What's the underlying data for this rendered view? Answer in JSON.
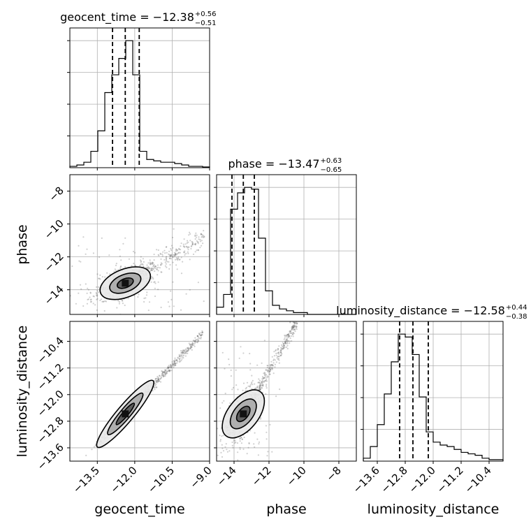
{
  "figure": {
    "type": "corner-plot",
    "parameters": [
      "geocent_time",
      "phase",
      "luminosity_distance"
    ]
  },
  "chart_data": [
    {
      "type": "histogram",
      "panel": "geocent_time-marginal",
      "title": {
        "main": "geocent_time = −12.38",
        "sup": "+0.56",
        "sub": "−0.51"
      },
      "xlim": [
        -14.6,
        -9.0
      ],
      "quantiles": [
        -12.89,
        -12.38,
        -11.82
      ],
      "bins": [
        -14.6,
        -14.32,
        -14.04,
        -13.76,
        -13.48,
        -13.2,
        -12.92,
        -12.64,
        -12.36,
        -12.08,
        -11.8,
        -11.52,
        -11.24,
        -10.96,
        -10.68,
        -10.4,
        -10.12,
        -9.84,
        -9.56,
        -9.28,
        -9.0
      ],
      "counts": [
        1,
        2,
        4,
        12,
        27,
        55,
        68,
        80,
        93,
        68,
        12,
        6,
        5,
        4,
        4,
        3,
        2,
        1,
        1,
        0.5
      ]
    },
    {
      "type": "histogram",
      "panel": "phase-marginal",
      "title": {
        "main": "phase = −13.47",
        "sup": "+0.63",
        "sub": "−0.65"
      },
      "xlim": [
        -15.0,
        -7.0
      ],
      "quantiles": [
        -14.12,
        -13.47,
        -12.84
      ],
      "bins": [
        -15.0,
        -14.6,
        -14.2,
        -13.8,
        -13.4,
        -13.0,
        -12.6,
        -12.2,
        -11.8,
        -11.4,
        -11.0,
        -10.6,
        -10.2,
        -9.8,
        -9.4,
        -9.0,
        -8.6,
        -8.2,
        -7.8,
        -7.4,
        -7.0
      ],
      "counts": [
        4,
        11,
        58,
        67,
        70,
        69,
        42,
        13,
        5,
        3,
        2,
        1,
        1,
        0,
        0,
        0,
        0,
        0,
        0,
        0
      ]
    },
    {
      "type": "histogram",
      "panel": "luminosity_distance-marginal",
      "title": {
        "main": "luminosity_distance = −12.58",
        "sup": "+0.44",
        "sub": "−0.38"
      },
      "xlim": [
        -14.0,
        -10.0
      ],
      "quantiles": [
        -12.96,
        -12.58,
        -12.14
      ],
      "bins": [
        -14.0,
        -13.8,
        -13.6,
        -13.4,
        -13.2,
        -13.0,
        -12.8,
        -12.6,
        -12.4,
        -12.2,
        -12.0,
        -11.8,
        -11.6,
        -11.4,
        -11.2,
        -11.0,
        -10.8,
        -10.6,
        -10.4,
        -10.2,
        -10.0
      ],
      "counts": [
        2,
        10,
        25,
        46,
        68,
        87,
        85,
        73,
        44,
        20,
        13,
        11,
        10,
        8,
        6,
        5,
        4,
        2,
        1,
        1
      ]
    },
    {
      "type": "scatter",
      "panel": "phase-vs-geocent_time",
      "x": "geocent_time",
      "y": "phase",
      "xlim": [
        -14.6,
        -9.0
      ],
      "ylim": [
        -15.5,
        -7.0
      ],
      "contour_center": [
        -12.38,
        -13.6
      ]
    },
    {
      "type": "scatter",
      "panel": "luminosity_distance-vs-geocent_time",
      "x": "geocent_time",
      "y": "luminosity_distance",
      "xlim": [
        -14.6,
        -9.0
      ],
      "ylim": [
        -14.0,
        -9.8
      ],
      "contour_center": [
        -12.38,
        -12.58
      ]
    },
    {
      "type": "scatter",
      "panel": "luminosity_distance-vs-phase",
      "x": "phase",
      "y": "luminosity_distance",
      "xlim": [
        -15.0,
        -7.0
      ],
      "ylim": [
        -14.0,
        -9.8
      ],
      "contour_center": [
        -13.47,
        -12.58
      ]
    }
  ],
  "axes": {
    "geocent_time": {
      "label": "geocent_time",
      "ticks": [
        -13.5,
        -12.0,
        -10.5,
        -9.0
      ],
      "tick_labels": [
        "−13.5",
        "−12.0",
        "−10.5",
        "−9.0"
      ]
    },
    "phase": {
      "label": "phase",
      "ticks": [
        -14,
        -12,
        -10,
        -8
      ],
      "tick_labels": [
        "−14",
        "−12",
        "−10",
        "−8"
      ]
    },
    "luminosity_distance": {
      "label": "luminosity_distance",
      "ticks": [
        -13.6,
        -12.8,
        -12.0,
        -11.2,
        -10.4
      ],
      "tick_labels": [
        "−13.6",
        "−12.8",
        "−12.0",
        "−11.2",
        "−10.4"
      ]
    }
  },
  "style": {
    "grid": true,
    "hist_color": "#000000",
    "points_color": "#555555",
    "contour_fill": [
      "#e8e8e8",
      "#a8a8a8",
      "#555555"
    ]
  }
}
